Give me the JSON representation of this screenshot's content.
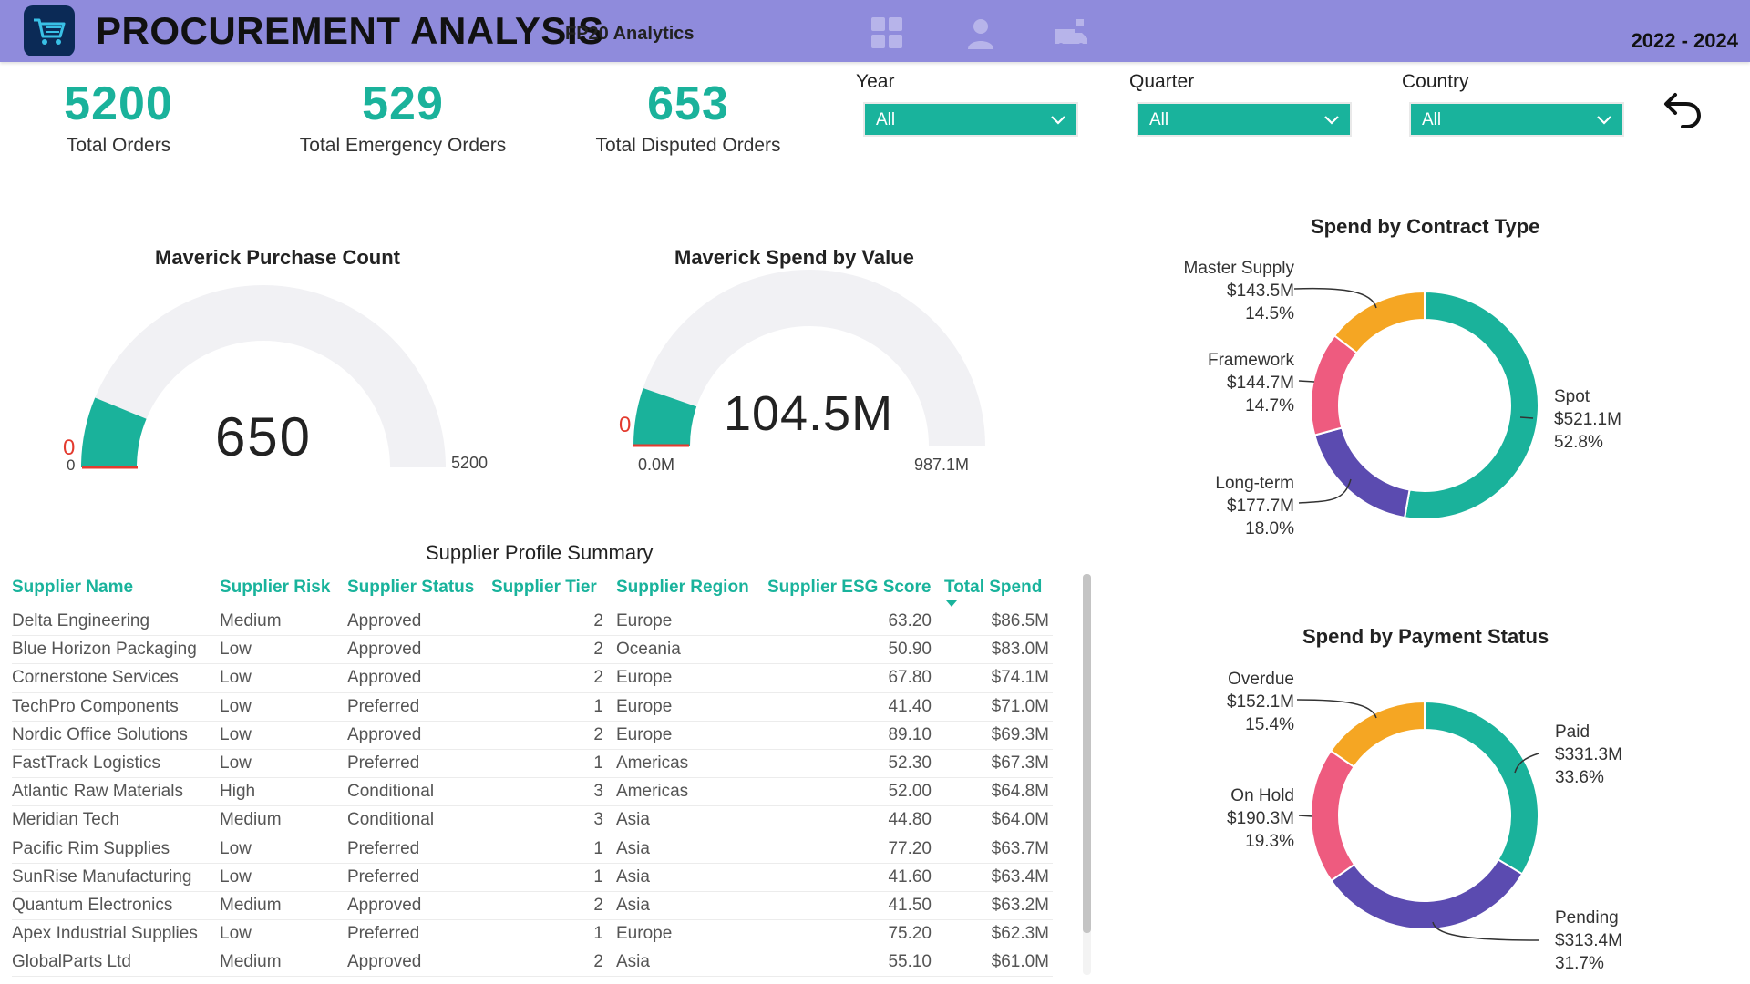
{
  "header": {
    "title": "PROCUREMENT ANALYSIS",
    "subtitle": "FP20 Analytics",
    "year_range": "2022 - 2024",
    "logo_icon": "shopping-cart-icon",
    "nav_icons": [
      "grid-icon",
      "user-icon",
      "truck-icon"
    ],
    "bg_color": "#8f8bdc"
  },
  "kpis": [
    {
      "value": "5200",
      "label": "Total Orders"
    },
    {
      "value": "529",
      "label": "Total Emergency Orders"
    },
    {
      "value": "653",
      "label": "Total Disputed Orders"
    }
  ],
  "filters": [
    {
      "label": "Year",
      "value": "All"
    },
    {
      "label": "Quarter",
      "value": "All"
    },
    {
      "label": "Country",
      "value": "All"
    }
  ],
  "accent_color": "#1ab29b",
  "chart_data": [
    {
      "type": "gauge",
      "title": "Maverick Purchase Count",
      "value": 650,
      "value_label": "650",
      "min": 0,
      "min_label": "0",
      "max": 5200,
      "max_label": "5200",
      "target_label": "0",
      "fill_color": "#1ab29b"
    },
    {
      "type": "gauge",
      "title": "Maverick Spend by Value",
      "value": 104.5,
      "value_label": "104.5M",
      "min": 0,
      "min_label": "0.0M",
      "max": 987.1,
      "max_label": "987.1M",
      "target_label": "0",
      "fill_color": "#1ab29b"
    },
    {
      "type": "pie",
      "title": "Spend by Contract Type",
      "slices": [
        {
          "name": "Spot",
          "amount": "$521.1M",
          "percent": "52.8%",
          "value": 52.8,
          "color": "#1ab29b"
        },
        {
          "name": "Long-term",
          "amount": "$177.7M",
          "percent": "18.0%",
          "value": 18.0,
          "color": "#5b4bb0"
        },
        {
          "name": "Framework",
          "amount": "$144.7M",
          "percent": "14.7%",
          "value": 14.7,
          "color": "#ee5b7f"
        },
        {
          "name": "Master Supply",
          "amount": "$143.5M",
          "percent": "14.5%",
          "value": 14.5,
          "color": "#f5a623"
        }
      ]
    },
    {
      "type": "pie",
      "title": "Spend by Payment Status",
      "slices": [
        {
          "name": "Paid",
          "amount": "$331.3M",
          "percent": "33.6%",
          "value": 33.6,
          "color": "#1ab29b"
        },
        {
          "name": "Pending",
          "amount": "$313.4M",
          "percent": "31.7%",
          "value": 31.7,
          "color": "#5b4bb0"
        },
        {
          "name": "On Hold",
          "amount": "$190.3M",
          "percent": "19.3%",
          "value": 19.3,
          "color": "#ee5b7f"
        },
        {
          "name": "Overdue",
          "amount": "$152.1M",
          "percent": "15.4%",
          "value": 15.4,
          "color": "#f5a623"
        }
      ]
    }
  ],
  "table": {
    "title": "Supplier Profile Summary",
    "columns": [
      "Supplier Name",
      "Supplier Risk",
      "Supplier Status",
      "Supplier Tier",
      "Supplier Region",
      "Supplier ESG Score",
      "Total Spend"
    ],
    "sorted_column": "Total Spend",
    "rows": [
      [
        "Delta Engineering",
        "Medium",
        "Approved",
        "2",
        "Europe",
        "63.20",
        "$86.5M"
      ],
      [
        "Blue Horizon Packaging",
        "Low",
        "Approved",
        "2",
        "Oceania",
        "50.90",
        "$83.0M"
      ],
      [
        "Cornerstone Services",
        "Low",
        "Approved",
        "2",
        "Europe",
        "67.80",
        "$74.1M"
      ],
      [
        "TechPro Components",
        "Low",
        "Preferred",
        "1",
        "Europe",
        "41.40",
        "$71.0M"
      ],
      [
        "Nordic Office Solutions",
        "Low",
        "Approved",
        "2",
        "Europe",
        "89.10",
        "$69.3M"
      ],
      [
        "FastTrack Logistics",
        "Low",
        "Preferred",
        "1",
        "Americas",
        "52.30",
        "$67.3M"
      ],
      [
        "Atlantic Raw Materials",
        "High",
        "Conditional",
        "3",
        "Americas",
        "52.00",
        "$64.8M"
      ],
      [
        "Meridian Tech",
        "Medium",
        "Conditional",
        "3",
        "Asia",
        "44.80",
        "$64.0M"
      ],
      [
        "Pacific Rim Supplies",
        "Low",
        "Preferred",
        "1",
        "Asia",
        "77.20",
        "$63.7M"
      ],
      [
        "SunRise Manufacturing",
        "Low",
        "Preferred",
        "1",
        "Asia",
        "41.60",
        "$63.4M"
      ],
      [
        "Quantum Electronics",
        "Medium",
        "Approved",
        "2",
        "Asia",
        "41.50",
        "$63.2M"
      ],
      [
        "Apex Industrial Supplies",
        "Low",
        "Preferred",
        "1",
        "Europe",
        "75.20",
        "$62.3M"
      ],
      [
        "GlobalParts Ltd",
        "Medium",
        "Approved",
        "2",
        "Asia",
        "55.10",
        "$61.0M"
      ]
    ]
  }
}
